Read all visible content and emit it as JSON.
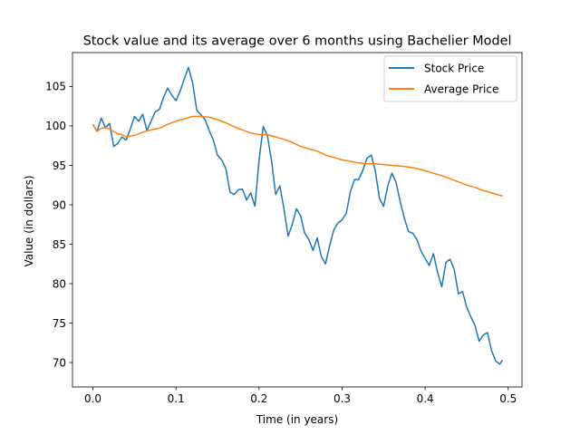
{
  "chart_data": {
    "type": "line",
    "title": "Stock value and its average over 6 months using Bachelier Model",
    "xlabel": "Time (in years)",
    "ylabel": "Value (in dollars)",
    "xlim": [
      -0.0246,
      0.5166
    ],
    "ylim": [
      66.9,
      109.3
    ],
    "xticks": [
      0.0,
      0.1,
      0.2,
      0.3,
      0.4,
      0.5
    ],
    "xtick_labels": [
      "0.0",
      "0.1",
      "0.2",
      "0.3",
      "0.4",
      "0.5"
    ],
    "yticks": [
      70,
      75,
      80,
      85,
      90,
      95,
      100,
      105
    ],
    "ytick_labels": [
      "70",
      "75",
      "80",
      "85",
      "90",
      "95",
      "100",
      "105"
    ],
    "grid": false,
    "legend_position": "top-right",
    "series": [
      {
        "name": "Stock Price",
        "color": "#1f77b4",
        "x": [
          0.0,
          0.005,
          0.01,
          0.015,
          0.02,
          0.025,
          0.03,
          0.035,
          0.04,
          0.045,
          0.05,
          0.055,
          0.06,
          0.065,
          0.07,
          0.075,
          0.08,
          0.085,
          0.09,
          0.095,
          0.1,
          0.105,
          0.11,
          0.115,
          0.12,
          0.125,
          0.13,
          0.135,
          0.14,
          0.145,
          0.15,
          0.155,
          0.16,
          0.165,
          0.17,
          0.175,
          0.18,
          0.185,
          0.19,
          0.195,
          0.2,
          0.205,
          0.21,
          0.215,
          0.22,
          0.225,
          0.23,
          0.235,
          0.24,
          0.245,
          0.25,
          0.255,
          0.26,
          0.265,
          0.27,
          0.275,
          0.28,
          0.285,
          0.29,
          0.295,
          0.3,
          0.305,
          0.31,
          0.315,
          0.32,
          0.325,
          0.33,
          0.335,
          0.34,
          0.345,
          0.35,
          0.355,
          0.36,
          0.365,
          0.37,
          0.375,
          0.38,
          0.385,
          0.39,
          0.395,
          0.4,
          0.405,
          0.41,
          0.415,
          0.42,
          0.425,
          0.43,
          0.435,
          0.44,
          0.445,
          0.45,
          0.455,
          0.46,
          0.465,
          0.47,
          0.475,
          0.48,
          0.485,
          0.49,
          0.493
        ],
        "values": [
          100.2,
          99.3,
          101.0,
          99.8,
          100.3,
          97.4,
          97.8,
          98.6,
          98.2,
          99.6,
          101.2,
          100.6,
          101.5,
          99.4,
          100.6,
          101.8,
          102.1,
          103.6,
          104.8,
          103.9,
          103.2,
          104.4,
          106.0,
          107.4,
          105.5,
          102.0,
          101.4,
          100.8,
          99.4,
          98.2,
          96.3,
          95.7,
          94.6,
          91.6,
          91.3,
          91.9,
          92.0,
          90.6,
          91.5,
          89.8,
          95.6,
          99.9,
          98.8,
          95.6,
          91.3,
          92.4,
          89.5,
          86.0,
          87.5,
          89.5,
          88.6,
          86.4,
          85.6,
          84.2,
          85.8,
          83.4,
          82.5,
          84.8,
          86.8,
          87.7,
          88.1,
          88.9,
          91.7,
          93.2,
          93.2,
          94.4,
          95.9,
          96.3,
          94.3,
          90.8,
          89.8,
          92.4,
          94.0,
          92.8,
          90.4,
          88.3,
          86.6,
          86.4,
          85.6,
          84.1,
          83.2,
          82.3,
          83.8,
          81.4,
          79.6,
          82.7,
          83.1,
          81.8,
          78.7,
          79.0,
          77.0,
          75.8,
          74.7,
          72.7,
          73.5,
          73.8,
          71.5,
          70.2,
          69.8,
          70.3
        ]
      },
      {
        "name": "Average Price",
        "color": "#ff7f0e",
        "x": [
          0.0,
          0.005,
          0.01,
          0.015,
          0.02,
          0.025,
          0.03,
          0.035,
          0.04,
          0.045,
          0.05,
          0.06,
          0.07,
          0.08,
          0.09,
          0.1,
          0.11,
          0.12,
          0.125,
          0.13,
          0.14,
          0.15,
          0.16,
          0.17,
          0.18,
          0.19,
          0.2,
          0.21,
          0.22,
          0.23,
          0.24,
          0.25,
          0.26,
          0.27,
          0.28,
          0.29,
          0.3,
          0.31,
          0.32,
          0.33,
          0.34,
          0.35,
          0.36,
          0.37,
          0.38,
          0.39,
          0.4,
          0.41,
          0.42,
          0.43,
          0.44,
          0.45,
          0.46,
          0.47,
          0.48,
          0.49,
          0.493
        ],
        "values": [
          100.2,
          99.3,
          99.7,
          99.8,
          99.6,
          99.3,
          99.0,
          98.9,
          98.6,
          98.7,
          98.8,
          99.2,
          99.5,
          99.7,
          100.2,
          100.6,
          100.9,
          101.2,
          101.2,
          101.2,
          101.1,
          100.8,
          100.4,
          99.9,
          99.5,
          99.1,
          98.9,
          98.9,
          98.6,
          98.3,
          97.9,
          97.4,
          97.1,
          96.8,
          96.3,
          96.0,
          95.7,
          95.5,
          95.3,
          95.2,
          95.2,
          95.1,
          95.0,
          94.9,
          94.8,
          94.6,
          94.3,
          94.0,
          93.7,
          93.3,
          92.9,
          92.5,
          92.2,
          91.8,
          91.5,
          91.2,
          91.1
        ]
      }
    ]
  }
}
